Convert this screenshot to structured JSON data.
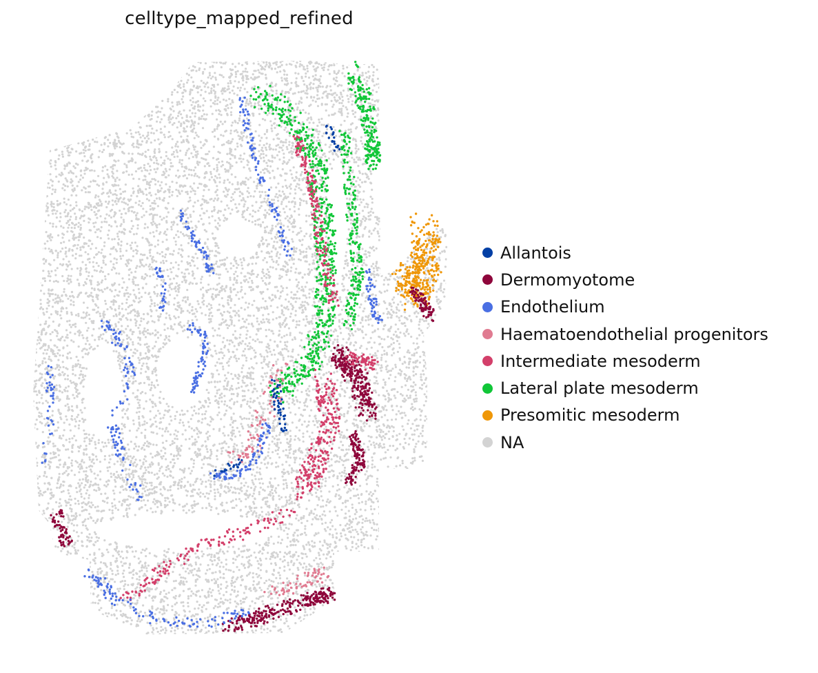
{
  "chart_data": {
    "type": "scatter",
    "title": "celltype_mapped_refined",
    "xlabel": "",
    "ylabel": "",
    "axes_visible": false,
    "grid": false,
    "legend_position": "right",
    "series": [
      {
        "name": "Allantois",
        "color": "#023fa5"
      },
      {
        "name": "Dermomyotome",
        "color": "#8e063b"
      },
      {
        "name": "Endothelium",
        "color": "#4a6fe3"
      },
      {
        "name": "Haematoendothelial progenitors",
        "color": "#e07b91"
      },
      {
        "name": "Intermediate mesoderm",
        "color": "#d33f6a"
      },
      {
        "name": "Lateral plate mesoderm",
        "color": "#11c638"
      },
      {
        "name": "Presomitic mesoderm",
        "color": "#ef9708"
      },
      {
        "name": "NA",
        "color": "#d3d3d3"
      }
    ],
    "x": [],
    "y": []
  }
}
